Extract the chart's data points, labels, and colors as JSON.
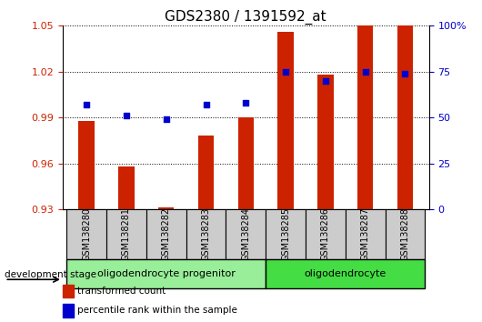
{
  "title": "GDS2380 / 1391592_at",
  "categories": [
    "GSM138280",
    "GSM138281",
    "GSM138282",
    "GSM138283",
    "GSM138284",
    "GSM138285",
    "GSM138286",
    "GSM138287",
    "GSM138288"
  ],
  "transformed_count": [
    0.988,
    0.958,
    0.931,
    0.978,
    0.99,
    1.046,
    1.018,
    1.05,
    1.05
  ],
  "percentile_rank": [
    57,
    51,
    49,
    57,
    58,
    75,
    70,
    75,
    74
  ],
  "ylim_left": [
    0.93,
    1.05
  ],
  "ylim_right": [
    0,
    100
  ],
  "yticks_left": [
    0.93,
    0.96,
    0.99,
    1.02,
    1.05
  ],
  "yticks_right": [
    0,
    25,
    50,
    75,
    100
  ],
  "bar_color": "#cc2200",
  "dot_color": "#0000cc",
  "background_color": "#ffffff",
  "group1_label": "oligodendrocyte progenitor",
  "group2_label": "oligodendrocyte",
  "group1_indices": [
    0,
    1,
    2,
    3,
    4
  ],
  "group2_indices": [
    5,
    6,
    7,
    8
  ],
  "group1_color": "#99ee99",
  "group2_color": "#44dd44",
  "stage_label": "development stage",
  "legend_bar_label": "transformed count",
  "legend_dot_label": "percentile rank within the sample",
  "title_fontsize": 11,
  "tick_fontsize": 8,
  "base_value": 0.93,
  "bar_width": 0.4
}
